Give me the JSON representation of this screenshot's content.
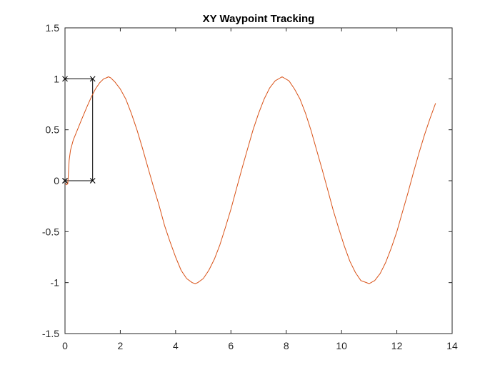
{
  "chart_data": {
    "type": "line",
    "title": "XY Waypoint Tracking",
    "xlabel": "",
    "ylabel": "",
    "xlim": [
      0,
      14
    ],
    "ylim": [
      -1.5,
      1.5
    ],
    "x_ticks": [
      0,
      2,
      4,
      6,
      8,
      10,
      12,
      14
    ],
    "y_ticks": [
      -1.5,
      -1,
      -0.5,
      0,
      0.5,
      1,
      1.5
    ],
    "x_tick_labels": [
      "0",
      "2",
      "4",
      "6",
      "8",
      "10",
      "12",
      "14"
    ],
    "y_tick_labels": [
      "-1.5",
      "-1",
      "-0.5",
      "0",
      "0.5",
      "1",
      "1.5"
    ],
    "grid": false,
    "box": true,
    "series": [
      {
        "style": "line-with-x-markers",
        "color": "#000000",
        "x": [
          0,
          1,
          1,
          0,
          0
        ],
        "y": [
          0,
          0,
          1,
          1,
          0
        ]
      },
      {
        "style": "line",
        "color": "#D95319",
        "x": [
          0.0,
          0.05,
          0.1,
          0.12,
          0.15,
          0.2,
          0.3,
          0.45,
          0.6,
          0.8,
          0.95,
          1.1,
          1.25,
          1.4,
          1.5,
          1.57,
          1.65,
          1.8,
          2.0,
          2.2,
          2.4,
          2.6,
          2.8,
          3.0,
          3.2,
          3.4,
          3.6,
          3.8,
          4.0,
          4.2,
          4.4,
          4.6,
          4.71,
          4.8,
          5.0,
          5.2,
          5.4,
          5.6,
          5.8,
          6.0,
          6.2,
          6.4,
          6.6,
          6.8,
          7.0,
          7.2,
          7.4,
          7.6,
          7.85,
          8.1,
          8.3,
          8.5,
          8.7,
          8.9,
          9.1,
          9.3,
          9.5,
          9.7,
          9.9,
          10.1,
          10.3,
          10.5,
          10.7,
          11.0,
          11.2,
          11.4,
          11.6,
          11.8,
          12.0,
          12.2,
          12.4,
          12.6,
          12.8,
          13.0,
          13.2,
          13.4
        ],
        "y": [
          -0.02,
          -0.04,
          -0.03,
          0.05,
          0.2,
          0.3,
          0.4,
          0.5,
          0.6,
          0.73,
          0.82,
          0.9,
          0.96,
          1.0,
          1.01,
          1.02,
          1.01,
          0.97,
          0.9,
          0.8,
          0.66,
          0.5,
          0.32,
          0.13,
          -0.06,
          -0.24,
          -0.44,
          -0.6,
          -0.75,
          -0.88,
          -0.96,
          -1.0,
          -1.01,
          -1.0,
          -0.96,
          -0.88,
          -0.77,
          -0.63,
          -0.46,
          -0.28,
          -0.08,
          0.12,
          0.31,
          0.5,
          0.66,
          0.8,
          0.91,
          0.98,
          1.02,
          0.98,
          0.9,
          0.8,
          0.66,
          0.49,
          0.3,
          0.11,
          -0.09,
          -0.29,
          -0.47,
          -0.64,
          -0.79,
          -0.9,
          -0.98,
          -1.01,
          -0.98,
          -0.91,
          -0.8,
          -0.66,
          -0.5,
          -0.31,
          -0.12,
          0.08,
          0.27,
          0.45,
          0.61,
          0.76
        ]
      }
    ]
  }
}
